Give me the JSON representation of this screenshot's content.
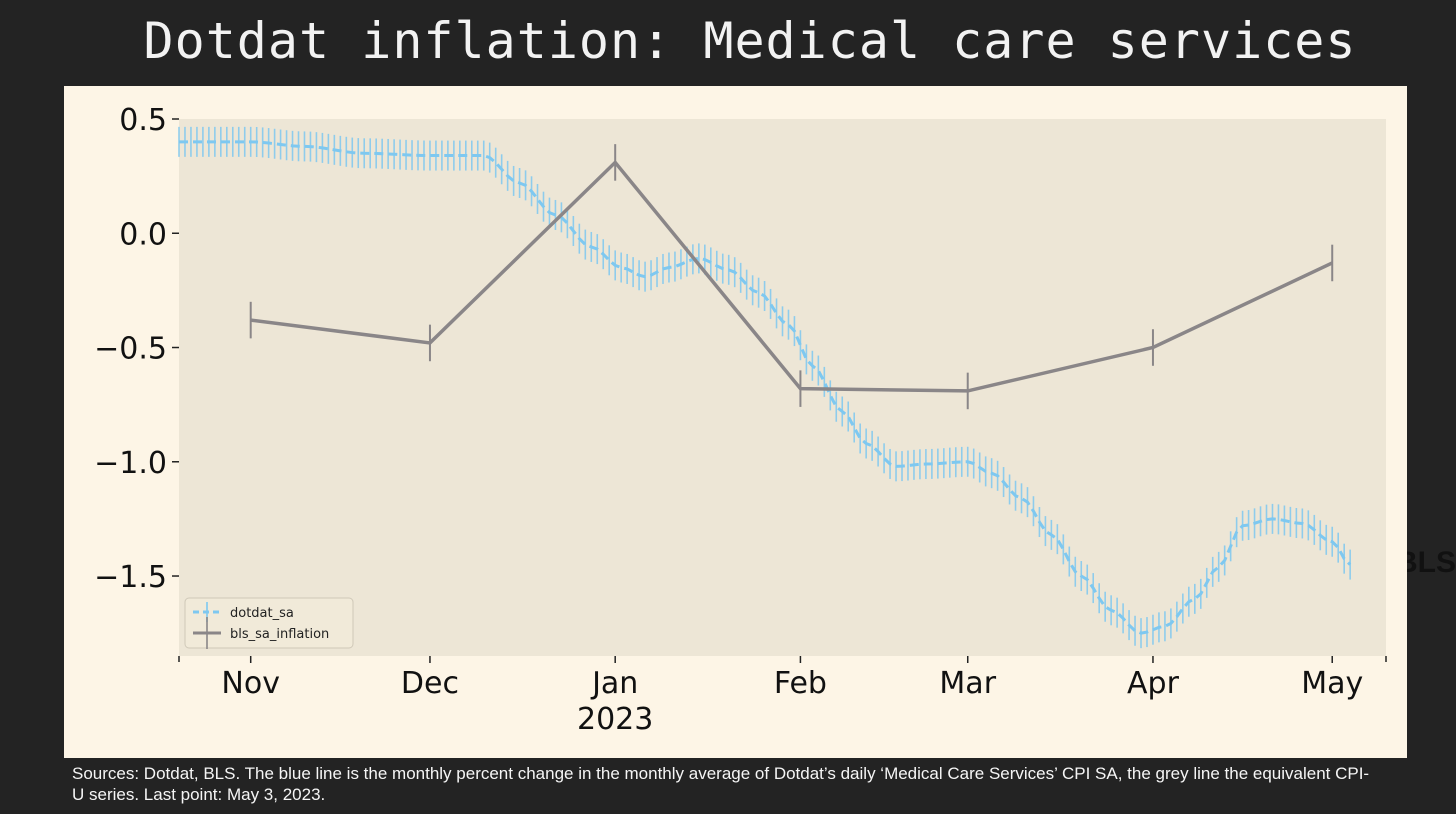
{
  "page": {
    "title": "Dotdat inflation: Medical care services",
    "side_label": "BLS:",
    "caption": "Sources: Dotdat, BLS. The blue line is the monthly percent change in the monthly average of Dotdat’s daily ‘Medical Care Services’ CPI SA, the grey line the equivalent CPI-U series. Last point: May 3, 2023."
  },
  "chart_data": {
    "type": "line",
    "title": "",
    "xlabel": "",
    "ylabel": "",
    "x_range": [
      "2022-10-20",
      "2023-05-10"
    ],
    "ylim": [
      -1.85,
      0.5
    ],
    "yticks": [
      0.5,
      0.0,
      -0.5,
      -1.0,
      -1.5
    ],
    "ytick_labels": [
      "0.5",
      "0.0",
      "−0.5",
      "−1.0",
      "−1.5"
    ],
    "xticks": [
      {
        "date": "2022-11-01",
        "label": "Nov",
        "sublabel": ""
      },
      {
        "date": "2022-12-01",
        "label": "Dec",
        "sublabel": ""
      },
      {
        "date": "2023-01-01",
        "label": "Jan",
        "sublabel": "2023"
      },
      {
        "date": "2023-02-01",
        "label": "Feb",
        "sublabel": ""
      },
      {
        "date": "2023-03-01",
        "label": "Mar",
        "sublabel": ""
      },
      {
        "date": "2023-04-01",
        "label": "Apr",
        "sublabel": ""
      },
      {
        "date": "2023-05-01",
        "label": "May",
        "sublabel": ""
      }
    ],
    "grid": false,
    "legend": "lower-left",
    "series": [
      {
        "name": "dotdat_sa",
        "color": "#7ec8f0",
        "style": "dashed",
        "x": [
          "2022-10-20",
          "2022-11-01",
          "2022-11-10",
          "2022-11-20",
          "2022-12-01",
          "2022-12-10",
          "2022-12-16",
          "2022-12-22",
          "2022-12-28",
          "2023-01-02",
          "2023-01-06",
          "2023-01-10",
          "2023-01-15",
          "2023-01-20",
          "2023-01-25",
          "2023-01-30",
          "2023-02-03",
          "2023-02-08",
          "2023-02-12",
          "2023-02-17",
          "2023-02-22",
          "2023-03-01",
          "2023-03-05",
          "2023-03-10",
          "2023-03-15",
          "2023-03-20",
          "2023-03-25",
          "2023-03-30",
          "2023-04-03",
          "2023-04-08",
          "2023-04-12",
          "2023-04-16",
          "2023-04-21",
          "2023-04-26",
          "2023-05-01",
          "2023-05-04"
        ],
        "values": [
          0.4,
          0.4,
          0.38,
          0.35,
          0.34,
          0.34,
          0.22,
          0.08,
          -0.06,
          -0.15,
          -0.19,
          -0.15,
          -0.11,
          -0.16,
          -0.26,
          -0.4,
          -0.58,
          -0.78,
          -0.92,
          -1.02,
          -1.01,
          -1.0,
          -1.05,
          -1.16,
          -1.32,
          -1.5,
          -1.65,
          -1.75,
          -1.72,
          -1.6,
          -1.46,
          -1.28,
          -1.25,
          -1.27,
          -1.35,
          -1.45
        ]
      },
      {
        "name": "bls_sa_inflation",
        "color": "#8a8688",
        "style": "solid",
        "x": [
          "2022-11-01",
          "2022-12-01",
          "2023-01-01",
          "2023-02-01",
          "2023-03-01",
          "2023-04-01",
          "2023-05-01"
        ],
        "values": [
          -0.38,
          -0.48,
          0.31,
          -0.68,
          -0.69,
          -0.5,
          -0.13
        ],
        "err": [
          0.08,
          0.08,
          0.08,
          0.08,
          0.08,
          0.08,
          0.08
        ]
      }
    ]
  }
}
